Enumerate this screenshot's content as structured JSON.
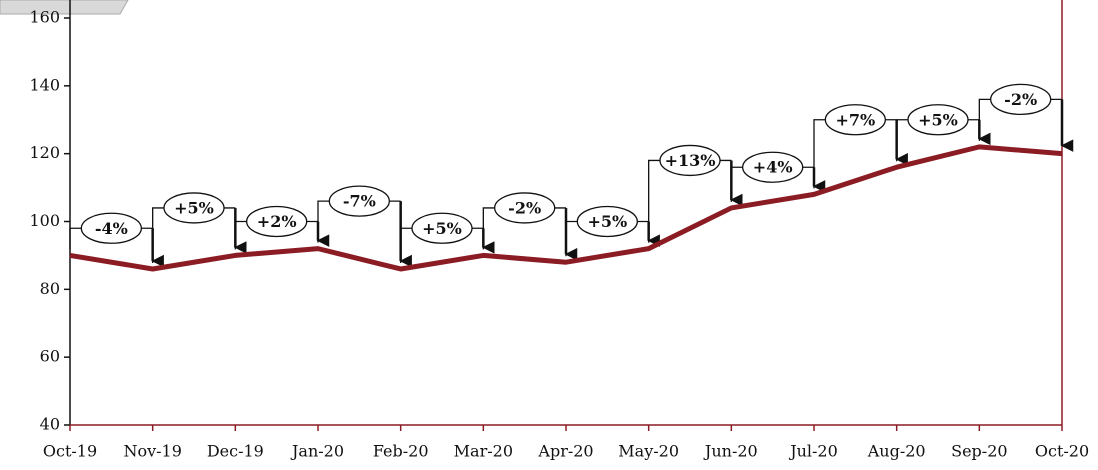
{
  "chart_data": {
    "type": "line",
    "categories": [
      "Oct-19",
      "Nov-19",
      "Dec-19",
      "Jan-20",
      "Feb-20",
      "Mar-20",
      "Apr-20",
      "May-20",
      "Jun-20",
      "Jul-20",
      "Aug-20",
      "Sep-20",
      "Oct-20"
    ],
    "series": [
      {
        "color": "#8b1c24",
        "values": [
          90,
          86,
          90,
          92,
          86,
          90,
          88,
          92,
          104,
          108,
          116,
          122,
          120
        ]
      }
    ],
    "change_labels": [
      "-4%",
      "+5%",
      "+2%",
      "-7%",
      "+5%",
      "-2%",
      "+5%",
      "+13%",
      "+4%",
      "+7%",
      "+5%",
      "-2%"
    ],
    "ylim": [
      40,
      160
    ],
    "yticks": [
      40,
      60,
      80,
      100,
      120,
      140,
      160
    ],
    "grid": false
  }
}
